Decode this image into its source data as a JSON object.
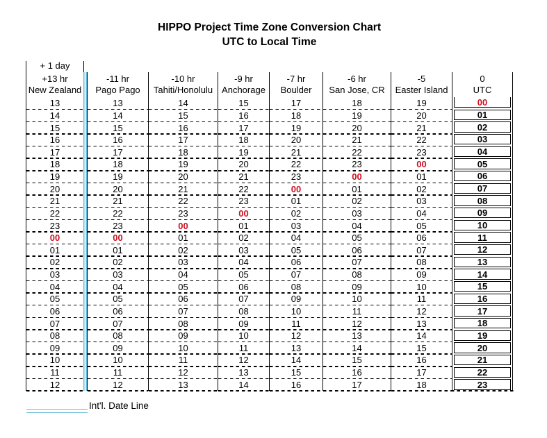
{
  "title": "HIPPO Project Time Zone Conversion Chart",
  "subtitle": "UTC to Local Time",
  "legend": {
    "label": "Int'l. Date Line"
  },
  "colors": {
    "date_line_blue": "#63b8d8",
    "highlight_red": "#cc1122"
  },
  "chart_data": {
    "type": "table",
    "plus_day_label": "+ 1 day",
    "highlight_value": "00",
    "columns": [
      {
        "offset_label": "+13 hr",
        "name": "New Zealand",
        "day_note": "+ 1 day",
        "values": [
          "13",
          "14",
          "15",
          "16",
          "17",
          "18",
          "19",
          "20",
          "21",
          "22",
          "23",
          "00",
          "01",
          "02",
          "03",
          "04",
          "05",
          "06",
          "07",
          "08",
          "09",
          "10",
          "11",
          "12"
        ]
      },
      {
        "offset_label": "-11 hr",
        "name": "Pago Pago",
        "values": [
          "13",
          "14",
          "15",
          "16",
          "17",
          "18",
          "19",
          "20",
          "21",
          "22",
          "23",
          "00",
          "01",
          "02",
          "03",
          "04",
          "05",
          "06",
          "07",
          "08",
          "09",
          "10",
          "11",
          "12"
        ]
      },
      {
        "offset_label": "-10 hr",
        "name": "Tahiti/Honolulu",
        "values": [
          "14",
          "15",
          "16",
          "17",
          "18",
          "19",
          "20",
          "21",
          "22",
          "23",
          "00",
          "01",
          "02",
          "03",
          "04",
          "05",
          "06",
          "07",
          "08",
          "09",
          "10",
          "11",
          "12",
          "13"
        ]
      },
      {
        "offset_label": "-9 hr",
        "name": "Anchorage",
        "values": [
          "15",
          "16",
          "17",
          "18",
          "19",
          "20",
          "21",
          "22",
          "23",
          "00",
          "01",
          "02",
          "03",
          "04",
          "05",
          "06",
          "07",
          "08",
          "09",
          "10",
          "11",
          "12",
          "13",
          "14"
        ]
      },
      {
        "offset_label": "-7 hr",
        "name": "Boulder",
        "values": [
          "17",
          "18",
          "19",
          "20",
          "21",
          "22",
          "23",
          "00",
          "01",
          "02",
          "03",
          "04",
          "05",
          "06",
          "07",
          "08",
          "09",
          "10",
          "11",
          "12",
          "13",
          "14",
          "15",
          "16"
        ]
      },
      {
        "offset_label": "-6 hr",
        "name": "San Jose, CR",
        "values": [
          "18",
          "19",
          "20",
          "21",
          "22",
          "23",
          "00",
          "01",
          "02",
          "03",
          "04",
          "05",
          "06",
          "07",
          "08",
          "09",
          "10",
          "11",
          "12",
          "13",
          "14",
          "15",
          "16",
          "17"
        ]
      },
      {
        "offset_label": "-5",
        "name": "Easter Island",
        "values": [
          "19",
          "20",
          "21",
          "22",
          "23",
          "00",
          "01",
          "02",
          "03",
          "04",
          "05",
          "06",
          "07",
          "08",
          "09",
          "10",
          "11",
          "12",
          "13",
          "14",
          "15",
          "16",
          "17",
          "18"
        ]
      },
      {
        "offset_label": "0",
        "name": "UTC",
        "values": [
          "00",
          "01",
          "02",
          "03",
          "04",
          "05",
          "06",
          "07",
          "08",
          "09",
          "10",
          "11",
          "12",
          "13",
          "14",
          "15",
          "16",
          "17",
          "18",
          "19",
          "20",
          "21",
          "22",
          "23"
        ]
      }
    ]
  }
}
